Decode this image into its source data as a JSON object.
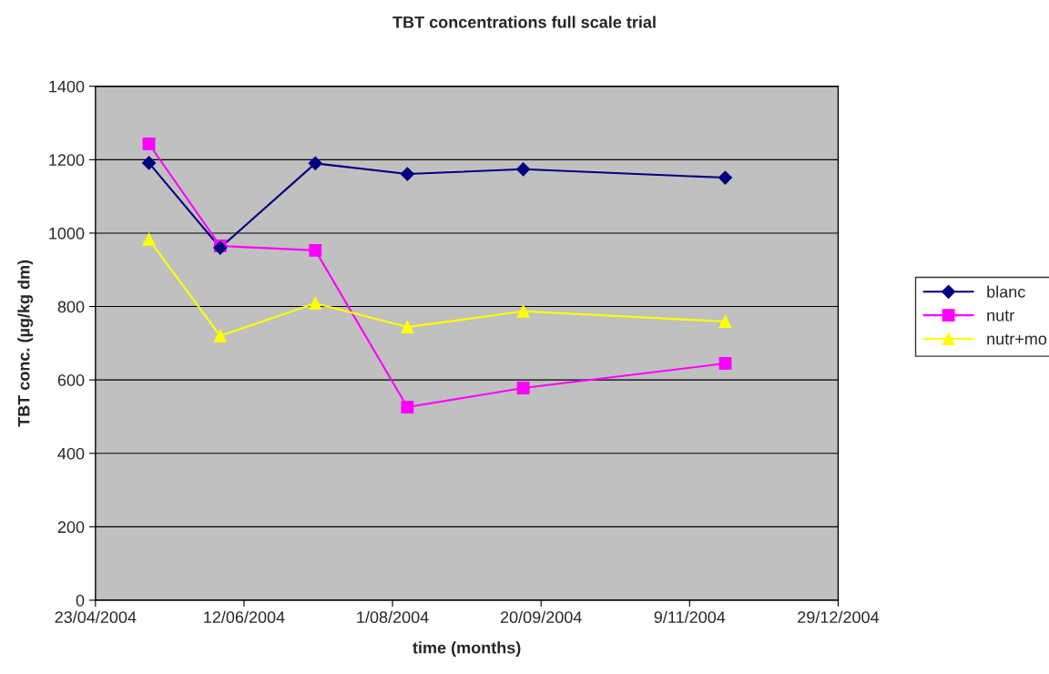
{
  "chart_data": {
    "type": "line",
    "title": "TBT concentrations full scale trial",
    "xlabel": "time (months)",
    "ylabel": "TBT conc. (µg/kg dm)",
    "x": [
      "2004-05-11",
      "2004-06-04",
      "2004-07-06",
      "2004-08-06",
      "2004-09-14",
      "2004-11-21"
    ],
    "series": [
      {
        "name": "blanc",
        "color": "#000080",
        "marker": "diamond",
        "values": [
          1191,
          960,
          1190,
          1161,
          1174,
          1151
        ]
      },
      {
        "name": "nutr",
        "color": "#ff00ff",
        "marker": "square",
        "values": [
          1243,
          965,
          953,
          526,
          578,
          645
        ]
      },
      {
        "name": "nutr+mo",
        "color": "#ffff00",
        "marker": "triangle",
        "values": [
          983,
          720,
          809,
          744,
          787,
          759
        ]
      }
    ],
    "xlim": [
      "2004-04-23",
      "2004-12-29"
    ],
    "xticks": [
      {
        "value": "2004-04-23",
        "label": "23/04/2004"
      },
      {
        "value": "2004-06-12",
        "label": "12/06/2004"
      },
      {
        "value": "2004-08-01",
        "label": "1/08/2004"
      },
      {
        "value": "2004-09-20",
        "label": "20/09/2004"
      },
      {
        "value": "2004-11-09",
        "label": "9/11/2004"
      },
      {
        "value": "2004-12-29",
        "label": "29/12/2004"
      }
    ],
    "ylim": [
      0,
      1400
    ],
    "yticks": [
      0,
      200,
      400,
      600,
      800,
      1000,
      1200,
      1400
    ],
    "grid": "y",
    "legend": "right",
    "line_style": "solid"
  }
}
